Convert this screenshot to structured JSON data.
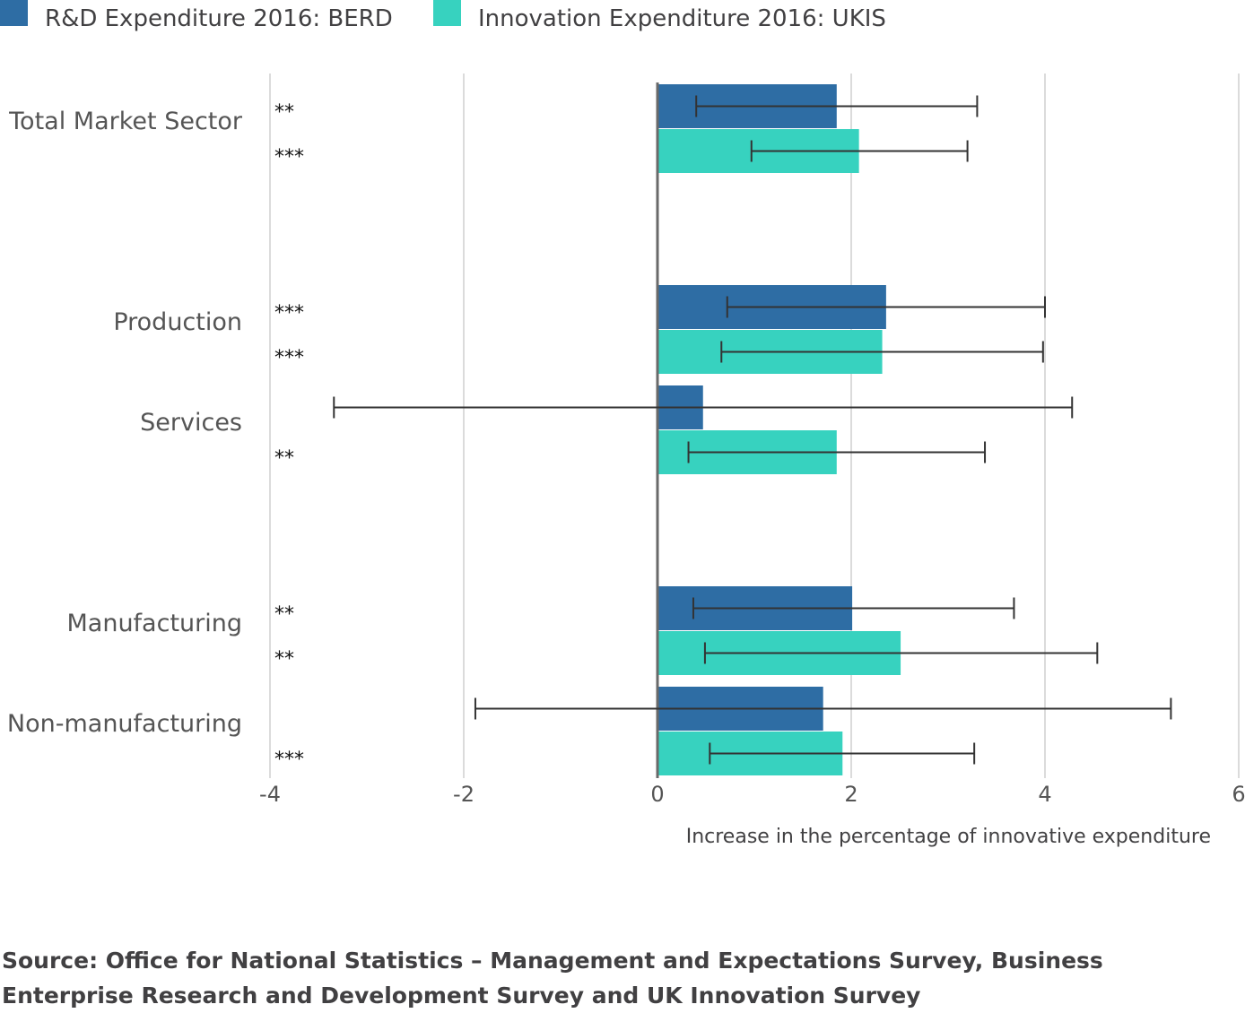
{
  "chart_data": {
    "type": "bar",
    "orientation": "horizontal",
    "categories": [
      "Total Market Sector",
      "Production",
      "Services",
      "Manufacturing",
      "Non-manufacturing"
    ],
    "series": [
      {
        "name": "R&D Expenditure 2016: BERD",
        "color": "#2e6da4",
        "values": [
          1.85,
          2.36,
          0.47,
          2.01,
          1.71
        ],
        "ci_low": [
          0.4,
          0.72,
          -3.34,
          0.37,
          -1.88
        ],
        "ci_high": [
          3.3,
          4.0,
          4.28,
          3.68,
          5.3
        ],
        "significance": [
          "**",
          "***",
          "",
          "**",
          ""
        ]
      },
      {
        "name": "Innovation Expenditure 2016: UKIS",
        "color": "#37d2bf",
        "values": [
          2.08,
          2.32,
          1.85,
          2.51,
          1.91
        ],
        "ci_low": [
          0.97,
          0.66,
          0.32,
          0.49,
          0.54
        ],
        "ci_high": [
          3.2,
          3.98,
          3.38,
          4.54,
          3.27
        ],
        "significance": [
          "***",
          "***",
          "**",
          "**",
          "***"
        ]
      }
    ],
    "xlabel": "Increase in the percentage of innovative expenditure",
    "xlim": [
      -4,
      6
    ],
    "xticks": [
      "-4",
      "-2",
      "0",
      "2",
      "4",
      "6"
    ],
    "grid": true,
    "error_bars": true,
    "legend_position": "top-left"
  },
  "source": "Source: Office for National Statistics – Management and Expectations Survey, Business Enterprise Research and Development Survey and UK Innovation Survey"
}
